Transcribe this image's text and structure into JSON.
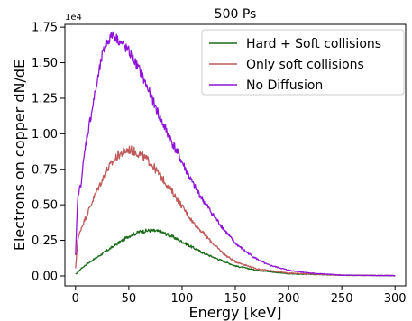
{
  "chart_data": {
    "type": "line",
    "title": "500 Ps",
    "xlabel": "Energy [keV]",
    "ylabel": "Electrons on copper dN/dE",
    "y_offset_label": "1e4",
    "xlim": [
      -10,
      310
    ],
    "ylim": [
      -0.07,
      1.77
    ],
    "x_ticks": [
      0,
      50,
      100,
      150,
      200,
      250,
      300
    ],
    "x_tick_labels": [
      "0",
      "50",
      "100",
      "150",
      "200",
      "250",
      "300"
    ],
    "y_ticks": [
      0.0,
      0.25,
      0.5,
      0.75,
      1.0,
      1.25,
      1.5,
      1.75
    ],
    "y_tick_labels": [
      "0.00",
      "0.25",
      "0.50",
      "0.75",
      "1.00",
      "1.25",
      "1.50",
      "1.75"
    ],
    "y_unit_scale": 10000,
    "grid": false,
    "legend_position": "top-right",
    "series": [
      {
        "name": "Hard + Soft collisions",
        "color": "#1a6b1a",
        "x": [
          0,
          5,
          10,
          20,
          30,
          40,
          50,
          60,
          70,
          80,
          90,
          100,
          110,
          120,
          130,
          140,
          150,
          170,
          200,
          250,
          300
        ],
        "y": [
          0.01,
          0.05,
          0.08,
          0.13,
          0.18,
          0.23,
          0.28,
          0.31,
          0.32,
          0.31,
          0.28,
          0.24,
          0.2,
          0.16,
          0.13,
          0.1,
          0.07,
          0.04,
          0.015,
          0.005,
          0.002
        ]
      },
      {
        "name": "Only soft collisions",
        "color": "#c05a5a",
        "x": [
          0,
          2,
          5,
          10,
          20,
          30,
          40,
          50,
          60,
          70,
          80,
          90,
          100,
          110,
          120,
          130,
          140,
          150,
          170,
          200,
          250,
          300
        ],
        "y": [
          0.05,
          0.25,
          0.33,
          0.42,
          0.6,
          0.75,
          0.85,
          0.89,
          0.86,
          0.8,
          0.7,
          0.6,
          0.49,
          0.38,
          0.3,
          0.22,
          0.15,
          0.1,
          0.05,
          0.02,
          0.005,
          0.002
        ]
      },
      {
        "name": "No Diffusion",
        "color": "#9013d8",
        "x": [
          0,
          2,
          5,
          10,
          15,
          20,
          25,
          30,
          35,
          40,
          45,
          50,
          60,
          70,
          80,
          90,
          100,
          110,
          120,
          130,
          140,
          150,
          160,
          170,
          180,
          200,
          220,
          250,
          300
        ],
        "y": [
          0.14,
          0.55,
          0.65,
          0.95,
          1.15,
          1.35,
          1.55,
          1.65,
          1.7,
          1.66,
          1.62,
          1.58,
          1.45,
          1.28,
          1.1,
          0.95,
          0.8,
          0.65,
          0.53,
          0.42,
          0.32,
          0.23,
          0.17,
          0.12,
          0.08,
          0.04,
          0.02,
          0.005,
          0.002
        ]
      }
    ]
  }
}
